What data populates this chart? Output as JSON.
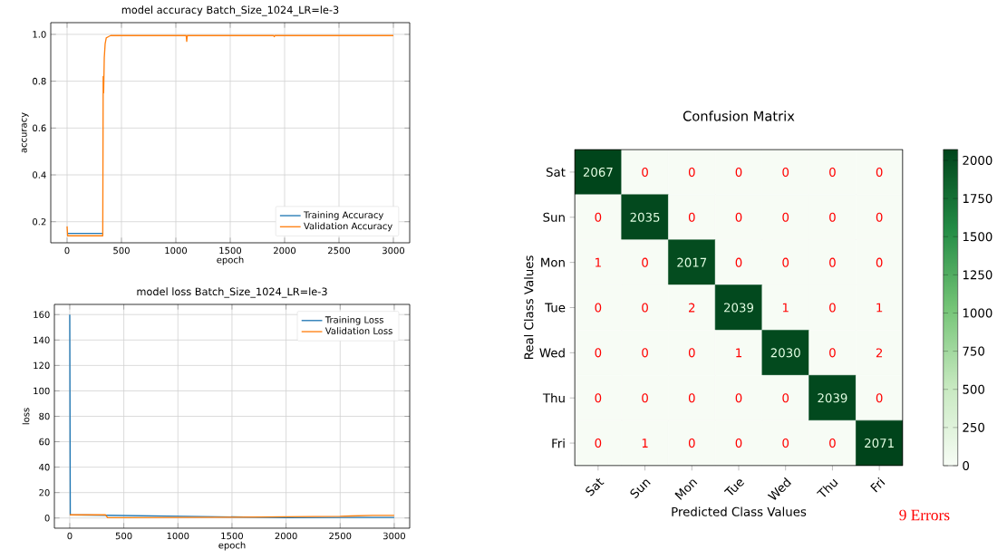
{
  "chart_data": [
    {
      "type": "line",
      "title": "model accuracy Batch_Size_1024_LR=le-3",
      "xlabel": "epoch",
      "ylabel": "accuracy",
      "xlim": [
        -150,
        3150
      ],
      "ylim": [
        0.11,
        1.05
      ],
      "xticks": [
        0,
        500,
        1000,
        1500,
        2000,
        2500,
        3000
      ],
      "yticks": [
        {
          "value": 0.2,
          "label": "0.2"
        },
        {
          "value": 0.4,
          "label": "0.4"
        },
        {
          "value": 0.6,
          "label": "0.6"
        },
        {
          "value": 0.8,
          "label": "0.8"
        },
        {
          "value": 1.0,
          "label": "1.0"
        }
      ],
      "grid": true,
      "legend": "bottom right",
      "series": [
        {
          "name": "Training Accuracy",
          "color": "#1f77b4",
          "x": [
            0,
            50,
            100,
            150,
            200,
            250,
            300,
            328
          ],
          "values": [
            0.15,
            0.15,
            0.15,
            0.15,
            0.15,
            0.15,
            0.15,
            0.15
          ]
        },
        {
          "name": "Validation Accuracy",
          "color": "#ff7f0e",
          "x": [
            0,
            5,
            50,
            100,
            150,
            200,
            250,
            300,
            328,
            332,
            336,
            342,
            350,
            360,
            380,
            400,
            500,
            1000,
            1095,
            1100,
            1105,
            1500,
            1900,
            1905,
            1910,
            2500,
            3000
          ],
          "values": [
            0.18,
            0.14,
            0.14,
            0.14,
            0.14,
            0.14,
            0.14,
            0.14,
            0.14,
            0.82,
            0.75,
            0.9,
            0.96,
            0.985,
            0.99,
            0.995,
            0.995,
            0.995,
            0.995,
            0.97,
            0.995,
            0.995,
            0.995,
            0.99,
            0.995,
            0.995,
            0.995
          ]
        }
      ]
    },
    {
      "type": "line",
      "title": "model loss Batch_Size_1024_LR=le-3",
      "xlabel": "epoch",
      "ylabel": "loss",
      "xlim": [
        -142,
        3143
      ],
      "ylim": [
        -8,
        168
      ],
      "xticks": [
        0,
        500,
        1000,
        1500,
        2000,
        2500,
        3000
      ],
      "yticks": [
        0,
        20,
        40,
        60,
        80,
        100,
        120,
        140,
        160
      ],
      "grid": true,
      "legend": "top right",
      "series": [
        {
          "name": "Training Loss",
          "color": "#1f77b4",
          "x": [
            0,
            5,
            2000,
            2500,
            3000
          ],
          "values": [
            160,
            2.5,
            0.3,
            0.4,
            0.5
          ]
        },
        {
          "name": "Validation Loss",
          "color": "#ff7f0e",
          "x": [
            0,
            100,
            200,
            300,
            330,
            350,
            500,
            1000,
            1500,
            2000,
            2500,
            2600,
            2800,
            3000
          ],
          "values": [
            2.5,
            2.5,
            2.5,
            2.5,
            2.5,
            0.3,
            0.3,
            0.4,
            0.6,
            1,
            1.3,
            1.6,
            2,
            2
          ]
        }
      ]
    },
    {
      "type": "heatmap",
      "title": "Confusion Matrix",
      "xlabel": "Predicted Class Values",
      "ylabel": "Real Class Values",
      "categories": [
        "Sat",
        "Sun",
        "Mon",
        "Tue",
        "Wed",
        "Thu",
        "Fri"
      ],
      "y_categories": [
        "Sat",
        "Sun",
        "Mon",
        "Tue",
        "Wed",
        "Thu",
        "Fri"
      ],
      "cells": [
        [
          2067,
          0,
          0,
          0,
          0,
          0,
          0
        ],
        [
          0,
          2035,
          0,
          0,
          0,
          0,
          0
        ],
        [
          1,
          0,
          2017,
          0,
          0,
          0,
          0
        ],
        [
          0,
          0,
          2,
          2039,
          1,
          0,
          1
        ],
        [
          0,
          0,
          0,
          1,
          2030,
          0,
          2
        ],
        [
          0,
          0,
          0,
          0,
          0,
          2039,
          0
        ],
        [
          0,
          1,
          0,
          0,
          0,
          0,
          2071
        ]
      ],
      "clim": [
        0,
        2071
      ],
      "cticks": [
        0,
        250,
        500,
        750,
        1000,
        1250,
        1500,
        1750,
        2000
      ],
      "data_labels": true,
      "annotations": [
        "9 Errors"
      ]
    }
  ]
}
